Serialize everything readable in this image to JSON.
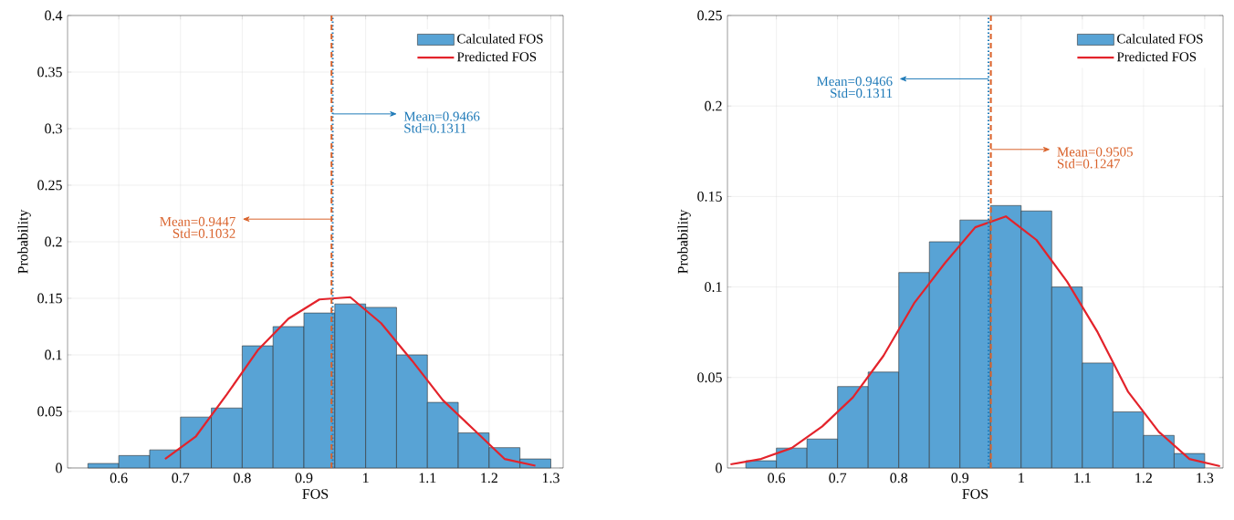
{
  "chart_data": [
    {
      "type": "histogram",
      "xlabel": "FOS",
      "ylabel": "Probability",
      "xlim": [
        0.517,
        1.32
      ],
      "ylim": [
        0,
        0.4
      ],
      "xticks": [
        0.6,
        0.7,
        0.8,
        0.9,
        1,
        1.1,
        1.2,
        1.3
      ],
      "yticks": [
        0,
        0.05,
        0.1,
        0.15,
        0.2,
        0.25,
        0.3,
        0.35,
        0.4
      ],
      "grid": true,
      "legend": "top right",
      "bins": [
        0.55,
        0.6,
        0.65,
        0.7,
        0.75,
        0.8,
        0.85,
        0.9,
        0.95,
        1.0,
        1.05,
        1.1,
        1.15,
        1.2,
        1.25,
        1.3
      ],
      "series": [
        {
          "name": "Calculated FOS",
          "color": "#58a3d5",
          "values": [
            0.004,
            0.011,
            0.016,
            0.045,
            0.053,
            0.108,
            0.125,
            0.137,
            0.145,
            0.142,
            0.1,
            0.058,
            0.031,
            0.018,
            0.008
          ]
        },
        {
          "name": "Predicted FOS",
          "type": "line",
          "color": "#e3232b",
          "x": [
            0.675,
            0.725,
            0.775,
            0.825,
            0.875,
            0.925,
            0.975,
            1.025,
            1.075,
            1.125,
            1.175,
            1.225,
            1.275
          ],
          "values": [
            0.008,
            0.028,
            0.065,
            0.104,
            0.132,
            0.149,
            0.151,
            0.128,
            0.095,
            0.06,
            0.034,
            0.008,
            0.002
          ]
        }
      ],
      "ref_lines": [
        {
          "axis": "x",
          "value": 0.9466,
          "label": "Mean=0.9466",
          "color": "#1f7ab8",
          "line_style": "dotted"
        },
        {
          "axis": "x",
          "value": 0.9447,
          "label": "Mean=0.9447",
          "color": "#d9622b",
          "line_style": "dashed"
        }
      ],
      "annotations": [
        {
          "text": "Std=0.1311",
          "x": 0.9466,
          "y": 0.313
        },
        {
          "text": "Std=0.1032",
          "x": 0.9447,
          "y": 0.22
        }
      ]
    },
    {
      "type": "histogram",
      "xlabel": "FOS",
      "ylabel": "Probability",
      "xlim": [
        0.52,
        1.33
      ],
      "ylim": [
        0,
        0.25
      ],
      "xticks": [
        0.6,
        0.7,
        0.8,
        0.9,
        1,
        1.1,
        1.2,
        1.3
      ],
      "yticks": [
        0,
        0.05,
        0.1,
        0.15,
        0.2,
        0.25
      ],
      "grid": true,
      "legend": "top right",
      "bins": [
        0.55,
        0.6,
        0.65,
        0.7,
        0.75,
        0.8,
        0.85,
        0.9,
        0.95,
        1.0,
        1.05,
        1.1,
        1.15,
        1.2,
        1.25,
        1.3
      ],
      "series": [
        {
          "name": "Calculated FOS",
          "color": "#58a3d5",
          "values": [
            0.004,
            0.011,
            0.016,
            0.045,
            0.053,
            0.108,
            0.125,
            0.137,
            0.145,
            0.142,
            0.1,
            0.058,
            0.031,
            0.018,
            0.008
          ]
        },
        {
          "name": "Predicted FOS",
          "type": "line",
          "color": "#e3232b",
          "x": [
            0.525,
            0.575,
            0.625,
            0.675,
            0.725,
            0.775,
            0.825,
            0.875,
            0.925,
            0.975,
            1.025,
            1.075,
            1.125,
            1.175,
            1.225,
            1.275,
            1.325
          ],
          "values": [
            0.002,
            0.005,
            0.011,
            0.023,
            0.039,
            0.062,
            0.091,
            0.113,
            0.133,
            0.139,
            0.126,
            0.103,
            0.075,
            0.042,
            0.02,
            0.005,
            0.001
          ]
        }
      ],
      "ref_lines": [
        {
          "axis": "x",
          "value": 0.9466,
          "label": "Mean=0.9466",
          "color": "#1f7ab8",
          "line_style": "dotted"
        },
        {
          "axis": "x",
          "value": 0.9505,
          "label": "Mean=0.9505",
          "color": "#d9622b",
          "line_style": "dashed"
        }
      ],
      "annotations": [
        {
          "text": "Std=0.1311",
          "x": 0.9466,
          "y": 0.215
        },
        {
          "text": "Std=0.1247",
          "x": 0.9505,
          "y": 0.176
        }
      ]
    }
  ]
}
